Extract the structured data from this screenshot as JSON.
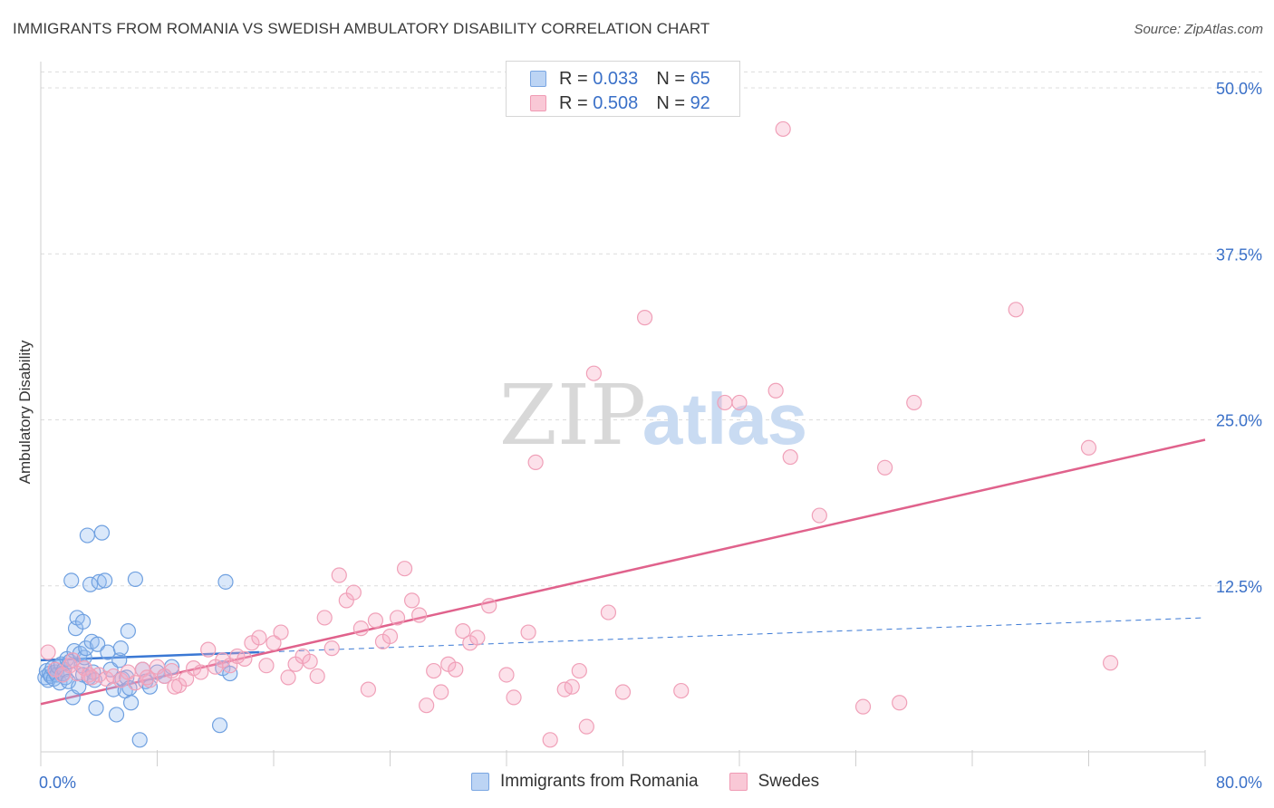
{
  "chart_data": {
    "type": "scatter",
    "title": "IMMIGRANTS FROM ROMANIA VS SWEDISH AMBULATORY DISABILITY CORRELATION CHART",
    "source": "Source: ZipAtlas.com",
    "xlabel": "",
    "ylabel": "Ambulatory Disability",
    "xlim": [
      0,
      80
    ],
    "ylim": [
      0,
      52
    ],
    "x_tick_labels": [
      {
        "value": 0,
        "label": "0.0%"
      },
      {
        "value": 80,
        "label": "80.0%"
      }
    ],
    "y_tick_labels": [
      {
        "value": 12.5,
        "label": "12.5%"
      },
      {
        "value": 25,
        "label": "25.0%"
      },
      {
        "value": 37.5,
        "label": "37.5%"
      },
      {
        "value": 50,
        "label": "50.0%"
      }
    ],
    "x_minor_ticks": [
      0,
      8,
      16,
      24,
      32,
      40,
      48,
      56,
      64,
      72,
      80
    ],
    "grid": true,
    "watermark": {
      "zip": "ZIP",
      "atlas": "atlas"
    },
    "legend": {
      "placement": "top-center",
      "rows": [
        {
          "series": "Immigrants from Romania",
          "r_label": "R =",
          "r_value": "0.033",
          "n_label": "N =",
          "n_value": "65"
        },
        {
          "series": "Swedes",
          "r_label": "R =",
          "r_value": "0.508",
          "n_label": "N =",
          "n_value": "92"
        }
      ]
    },
    "series": [
      {
        "name": "Immigrants from Romania",
        "color": "#6fa0e0",
        "line_color": "#3a78d4",
        "trend": {
          "x0": 0,
          "y0": 6.9,
          "x1": 80,
          "y1": 10.1,
          "solid_until": 15
        },
        "points": [
          [
            0.3,
            5.6
          ],
          [
            0.4,
            6.1
          ],
          [
            0.5,
            5.4
          ],
          [
            0.6,
            5.9
          ],
          [
            0.7,
            5.7
          ],
          [
            0.8,
            6.3
          ],
          [
            0.9,
            5.5
          ],
          [
            1.0,
            6.0
          ],
          [
            1.1,
            5.8
          ],
          [
            1.2,
            6.4
          ],
          [
            1.3,
            5.2
          ],
          [
            1.4,
            6.6
          ],
          [
            1.5,
            5.9
          ],
          [
            1.6,
            6.2
          ],
          [
            1.7,
            5.6
          ],
          [
            1.8,
            7.0
          ],
          [
            1.9,
            5.3
          ],
          [
            2.0,
            6.8
          ],
          [
            2.1,
            12.9
          ],
          [
            2.2,
            4.1
          ],
          [
            2.3,
            7.6
          ],
          [
            2.4,
            9.3
          ],
          [
            2.5,
            10.1
          ],
          [
            2.6,
            4.9
          ],
          [
            2.7,
            7.4
          ],
          [
            2.8,
            6.5
          ],
          [
            2.9,
            5.8
          ],
          [
            3.0,
            7.1
          ],
          [
            3.1,
            7.8
          ],
          [
            3.2,
            16.3
          ],
          [
            3.3,
            5.6
          ],
          [
            3.4,
            12.6
          ],
          [
            3.5,
            8.3
          ],
          [
            3.6,
            6.0
          ],
          [
            3.7,
            5.4
          ],
          [
            3.8,
            3.3
          ],
          [
            3.9,
            8.1
          ],
          [
            4.0,
            12.8
          ],
          [
            4.2,
            16.5
          ],
          [
            4.4,
            12.9
          ],
          [
            4.6,
            7.5
          ],
          [
            4.8,
            6.2
          ],
          [
            5.0,
            4.7
          ],
          [
            5.2,
            2.8
          ],
          [
            5.4,
            6.9
          ],
          [
            5.5,
            7.8
          ],
          [
            5.6,
            5.5
          ],
          [
            5.8,
            4.6
          ],
          [
            5.9,
            5.6
          ],
          [
            6.0,
            9.1
          ],
          [
            6.1,
            4.8
          ],
          [
            6.2,
            3.7
          ],
          [
            6.5,
            13.0
          ],
          [
            6.8,
            0.9
          ],
          [
            7.0,
            6.2
          ],
          [
            7.2,
            5.3
          ],
          [
            7.5,
            4.9
          ],
          [
            8.0,
            6.0
          ],
          [
            8.5,
            5.7
          ],
          [
            9.0,
            6.4
          ],
          [
            12.3,
            2.0
          ],
          [
            12.5,
            6.3
          ],
          [
            12.7,
            12.8
          ],
          [
            13.0,
            5.9
          ],
          [
            2.9,
            9.8
          ]
        ]
      },
      {
        "name": "Swedes",
        "color": "#f2a0b8",
        "line_color": "#e0628c",
        "trend": {
          "x0": 0,
          "y0": 3.6,
          "x1": 80,
          "y1": 23.5
        },
        "points": [
          [
            0.5,
            7.5
          ],
          [
            1.0,
            6.2
          ],
          [
            1.5,
            5.8
          ],
          [
            2.0,
            6.5
          ],
          [
            2.5,
            5.9
          ],
          [
            3.0,
            6.3
          ],
          [
            3.5,
            5.6
          ],
          [
            4.0,
            5.8
          ],
          [
            4.5,
            5.5
          ],
          [
            5.0,
            5.7
          ],
          [
            5.5,
            5.4
          ],
          [
            6.0,
            6.0
          ],
          [
            6.5,
            5.2
          ],
          [
            7.0,
            6.2
          ],
          [
            7.5,
            5.4
          ],
          [
            8.0,
            6.4
          ],
          [
            8.5,
            5.7
          ],
          [
            9.0,
            6.1
          ],
          [
            9.5,
            5.0
          ],
          [
            10.0,
            5.5
          ],
          [
            10.5,
            6.3
          ],
          [
            11.0,
            6.0
          ],
          [
            11.5,
            7.7
          ],
          [
            12.0,
            6.4
          ],
          [
            12.5,
            6.9
          ],
          [
            13.0,
            6.5
          ],
          [
            13.5,
            7.2
          ],
          [
            14.0,
            7.0
          ],
          [
            14.5,
            8.2
          ],
          [
            15.0,
            8.6
          ],
          [
            15.5,
            6.5
          ],
          [
            16.0,
            8.2
          ],
          [
            16.5,
            9.0
          ],
          [
            17.0,
            5.6
          ],
          [
            17.5,
            6.6
          ],
          [
            18.0,
            7.2
          ],
          [
            18.5,
            6.8
          ],
          [
            19.0,
            5.7
          ],
          [
            19.5,
            10.1
          ],
          [
            20.0,
            7.8
          ],
          [
            20.5,
            13.3
          ],
          [
            21.0,
            11.4
          ],
          [
            21.5,
            12.0
          ],
          [
            22.0,
            9.3
          ],
          [
            22.5,
            4.7
          ],
          [
            23.0,
            9.9
          ],
          [
            23.5,
            8.3
          ],
          [
            24.0,
            8.7
          ],
          [
            24.5,
            10.1
          ],
          [
            25.0,
            13.8
          ],
          [
            25.5,
            11.4
          ],
          [
            26.0,
            10.3
          ],
          [
            26.5,
            3.5
          ],
          [
            27.0,
            6.1
          ],
          [
            27.5,
            4.5
          ],
          [
            28.0,
            6.6
          ],
          [
            28.5,
            6.2
          ],
          [
            29.0,
            9.1
          ],
          [
            29.5,
            8.2
          ],
          [
            30.0,
            8.6
          ],
          [
            30.8,
            11.0
          ],
          [
            32.0,
            5.8
          ],
          [
            32.5,
            4.1
          ],
          [
            33.5,
            9.0
          ],
          [
            34.0,
            21.8
          ],
          [
            35.0,
            0.9
          ],
          [
            36.0,
            4.7
          ],
          [
            36.5,
            4.9
          ],
          [
            37.0,
            6.1
          ],
          [
            37.5,
            1.9
          ],
          [
            38.0,
            28.5
          ],
          [
            39.0,
            10.5
          ],
          [
            40.0,
            4.5
          ],
          [
            41.5,
            32.7
          ],
          [
            47.0,
            26.3
          ],
          [
            50.5,
            27.2
          ],
          [
            51.0,
            46.9
          ],
          [
            51.5,
            22.2
          ],
          [
            53.5,
            17.8
          ],
          [
            56.5,
            3.4
          ],
          [
            58.0,
            21.4
          ],
          [
            59.0,
            3.7
          ],
          [
            60.0,
            26.3
          ],
          [
            67.0,
            33.3
          ],
          [
            72.0,
            22.9
          ],
          [
            73.5,
            6.7
          ],
          [
            48.0,
            26.3
          ],
          [
            44.0,
            4.6
          ],
          [
            7.3,
            5.6
          ],
          [
            2.2,
            6.9
          ],
          [
            3.3,
            5.8
          ],
          [
            9.2,
            4.9
          ]
        ]
      }
    ]
  }
}
